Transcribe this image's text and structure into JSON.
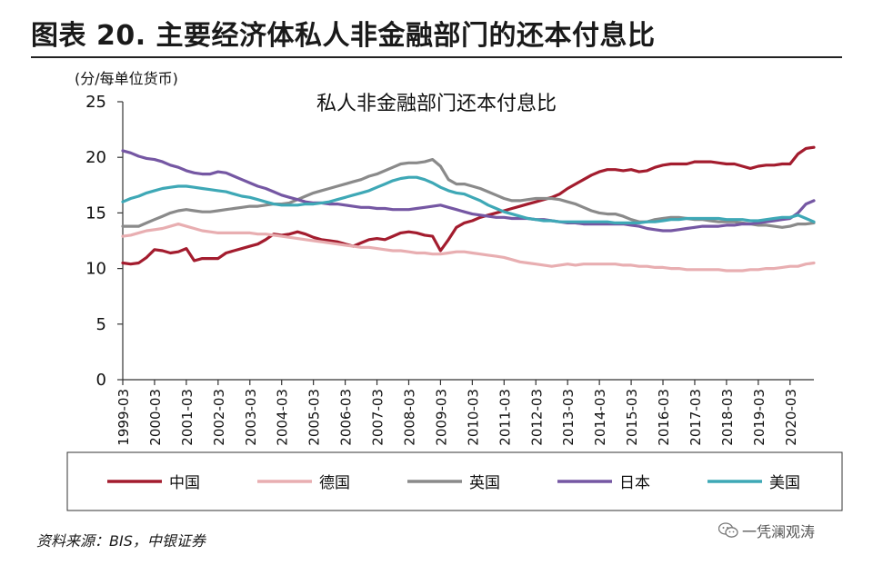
{
  "figure_title": "图表 20. 主要经济体私人非金融部门的还本付息比",
  "source": "资料来源：BIS，中银证券",
  "watermark": "一凭澜观涛",
  "colors": {
    "china": "#a31c2e",
    "germany": "#e8aeb1",
    "uk": "#8a8a8a",
    "japan": "#7557a3",
    "us": "#3ea8b6"
  },
  "chart_data": {
    "type": "line",
    "title": "私人非金融部门还本付息比",
    "ylabel": "(分/每单位货币)",
    "ylim": [
      0,
      25
    ],
    "yticks": [
      "0",
      "5",
      "10",
      "15",
      "20",
      "25"
    ],
    "xticks": [
      "1999-03",
      "2000-03",
      "2001-03",
      "2002-03",
      "2003-03",
      "2004-03",
      "2005-03",
      "2006-03",
      "2007-03",
      "2008-03",
      "2009-03",
      "2010-03",
      "2011-03",
      "2012-03",
      "2013-03",
      "2014-03",
      "2015-03",
      "2016-03",
      "2017-03",
      "2018-03",
      "2019-03",
      "2020-03"
    ],
    "x_start": "1999-03",
    "x_step": "quarter",
    "legend": "bottom",
    "series": [
      {
        "name": "中国",
        "key": "china",
        "values": [
          10.5,
          10.4,
          10.5,
          11.0,
          11.7,
          11.6,
          11.4,
          11.5,
          11.8,
          10.7,
          10.9,
          10.9,
          10.9,
          11.4,
          11.6,
          11.8,
          12.0,
          12.2,
          12.6,
          13.1,
          13.0,
          13.1,
          13.3,
          13.1,
          12.8,
          12.6,
          12.5,
          12.4,
          12.2,
          12.0,
          12.3,
          12.6,
          12.7,
          12.6,
          12.9,
          13.2,
          13.3,
          13.2,
          13.0,
          12.9,
          11.6,
          12.6,
          13.7,
          14.1,
          14.3,
          14.6,
          14.8,
          15.0,
          15.2,
          15.4,
          15.6,
          15.8,
          16.0,
          16.2,
          16.4,
          16.7,
          17.2,
          17.6,
          18.0,
          18.4,
          18.7,
          18.9,
          18.9,
          18.8,
          18.9,
          18.7,
          18.8,
          19.1,
          19.3,
          19.4,
          19.4,
          19.4,
          19.6,
          19.6,
          19.6,
          19.5,
          19.4,
          19.4,
          19.2,
          19.0,
          19.2,
          19.3,
          19.3,
          19.4,
          19.4,
          20.3,
          20.8,
          20.9
        ]
      },
      {
        "name": "德国",
        "key": "germany",
        "values": [
          12.9,
          13.0,
          13.2,
          13.4,
          13.5,
          13.6,
          13.8,
          14.0,
          13.8,
          13.6,
          13.4,
          13.3,
          13.2,
          13.2,
          13.2,
          13.2,
          13.2,
          13.1,
          13.1,
          13.0,
          12.9,
          12.8,
          12.7,
          12.6,
          12.5,
          12.4,
          12.3,
          12.2,
          12.1,
          12.0,
          11.9,
          11.9,
          11.8,
          11.7,
          11.6,
          11.6,
          11.5,
          11.4,
          11.4,
          11.3,
          11.3,
          11.4,
          11.5,
          11.5,
          11.4,
          11.3,
          11.2,
          11.1,
          11.0,
          10.8,
          10.6,
          10.5,
          10.4,
          10.3,
          10.2,
          10.3,
          10.4,
          10.3,
          10.4,
          10.4,
          10.4,
          10.4,
          10.4,
          10.3,
          10.3,
          10.2,
          10.2,
          10.1,
          10.1,
          10.0,
          10.0,
          9.9,
          9.9,
          9.9,
          9.9,
          9.9,
          9.8,
          9.8,
          9.8,
          9.9,
          9.9,
          10.0,
          10.0,
          10.1,
          10.2,
          10.2,
          10.4,
          10.5
        ]
      },
      {
        "name": "英国",
        "key": "uk",
        "values": [
          13.8,
          13.8,
          13.8,
          14.1,
          14.4,
          14.7,
          15.0,
          15.2,
          15.3,
          15.2,
          15.1,
          15.1,
          15.2,
          15.3,
          15.4,
          15.5,
          15.6,
          15.6,
          15.7,
          15.8,
          15.8,
          15.9,
          16.2,
          16.5,
          16.8,
          17.0,
          17.2,
          17.4,
          17.6,
          17.8,
          18.0,
          18.3,
          18.5,
          18.8,
          19.1,
          19.4,
          19.5,
          19.5,
          19.6,
          19.8,
          19.2,
          18.0,
          17.6,
          17.6,
          17.4,
          17.2,
          16.9,
          16.6,
          16.3,
          16.1,
          16.1,
          16.2,
          16.3,
          16.3,
          16.3,
          16.2,
          16.0,
          15.8,
          15.5,
          15.2,
          15.0,
          14.9,
          14.9,
          14.7,
          14.4,
          14.2,
          14.2,
          14.4,
          14.5,
          14.6,
          14.6,
          14.5,
          14.4,
          14.4,
          14.3,
          14.2,
          14.2,
          14.2,
          14.1,
          14.0,
          13.9,
          13.9,
          13.8,
          13.7,
          13.8,
          14.0,
          14.0,
          14.1
        ]
      },
      {
        "name": "日本",
        "key": "japan",
        "values": [
          20.6,
          20.4,
          20.1,
          19.9,
          19.8,
          19.6,
          19.3,
          19.1,
          18.8,
          18.6,
          18.5,
          18.5,
          18.7,
          18.6,
          18.3,
          18.0,
          17.7,
          17.4,
          17.2,
          16.9,
          16.6,
          16.4,
          16.2,
          16.0,
          15.9,
          15.9,
          15.8,
          15.8,
          15.7,
          15.6,
          15.5,
          15.5,
          15.4,
          15.4,
          15.3,
          15.3,
          15.3,
          15.4,
          15.5,
          15.6,
          15.7,
          15.5,
          15.3,
          15.1,
          14.9,
          14.8,
          14.7,
          14.6,
          14.6,
          14.5,
          14.5,
          14.5,
          14.4,
          14.4,
          14.3,
          14.2,
          14.1,
          14.1,
          14.0,
          14.0,
          14.0,
          14.0,
          14.0,
          14.0,
          13.9,
          13.8,
          13.6,
          13.5,
          13.4,
          13.4,
          13.5,
          13.6,
          13.7,
          13.8,
          13.8,
          13.8,
          13.9,
          13.9,
          14.0,
          14.0,
          14.1,
          14.2,
          14.3,
          14.4,
          14.5,
          15.0,
          15.8,
          16.1
        ]
      },
      {
        "name": "美国",
        "key": "us",
        "values": [
          16.0,
          16.3,
          16.5,
          16.8,
          17.0,
          17.2,
          17.3,
          17.4,
          17.4,
          17.3,
          17.2,
          17.1,
          17.0,
          16.9,
          16.7,
          16.5,
          16.4,
          16.2,
          16.0,
          15.8,
          15.7,
          15.7,
          15.7,
          15.8,
          15.8,
          15.9,
          16.0,
          16.2,
          16.4,
          16.6,
          16.8,
          17.0,
          17.3,
          17.6,
          17.9,
          18.1,
          18.2,
          18.2,
          18.0,
          17.7,
          17.3,
          17.0,
          16.8,
          16.7,
          16.4,
          16.1,
          15.7,
          15.4,
          15.1,
          14.9,
          14.7,
          14.5,
          14.4,
          14.3,
          14.3,
          14.2,
          14.2,
          14.2,
          14.2,
          14.2,
          14.2,
          14.2,
          14.1,
          14.1,
          14.1,
          14.1,
          14.2,
          14.2,
          14.3,
          14.4,
          14.4,
          14.5,
          14.5,
          14.5,
          14.5,
          14.5,
          14.4,
          14.4,
          14.4,
          14.3,
          14.3,
          14.4,
          14.5,
          14.6,
          14.6,
          14.8,
          14.5,
          14.2
        ]
      }
    ]
  }
}
